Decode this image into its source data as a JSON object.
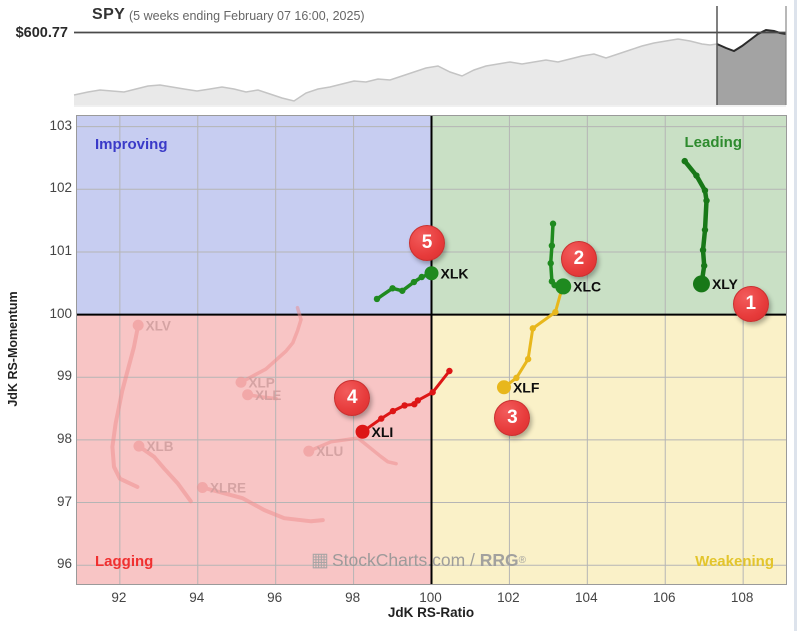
{
  "header": {
    "symbol": "SPY",
    "subtitle": "(5 weeks ending February 07 16:00, 2025)",
    "price_label": "$600.77"
  },
  "watermark": {
    "icon": "stockcharts-logo",
    "main": "StockCharts.com",
    "sep": " / ",
    "brand": "RRG",
    "reg": "®"
  },
  "chart_data": [
    {
      "type": "area",
      "title": "SPY",
      "subtitle": "(5 weeks ending February 07 16:00, 2025)",
      "price_line_label": "$600.77",
      "price_line_value": 600.77,
      "note": "SPY price sparkline; last 5 weeks highlighted in dark gray",
      "colors": {
        "area": "#e9e9e9",
        "line": "#c4c4c4",
        "hl_area": "#a3a3a3",
        "hl_line": "#2b2b2b",
        "ref_line": "#4a4a4a"
      },
      "points": [
        [
          74,
          95
        ],
        [
          88,
          92
        ],
        [
          100,
          90
        ],
        [
          112,
          91
        ],
        [
          124,
          92
        ],
        [
          136,
          89
        ],
        [
          148,
          86
        ],
        [
          160,
          85
        ],
        [
          172,
          87
        ],
        [
          184,
          89
        ],
        [
          197,
          91
        ],
        [
          210,
          89
        ],
        [
          222,
          87
        ],
        [
          234,
          89
        ],
        [
          246,
          92
        ],
        [
          258,
          90
        ],
        [
          270,
          94
        ],
        [
          282,
          98
        ],
        [
          294,
          101
        ],
        [
          306,
          93
        ],
        [
          318,
          89
        ],
        [
          330,
          87
        ],
        [
          342,
          84
        ],
        [
          354,
          81
        ],
        [
          366,
          82
        ],
        [
          378,
          79
        ],
        [
          390,
          80
        ],
        [
          402,
          76
        ],
        [
          414,
          72
        ],
        [
          426,
          68
        ],
        [
          438,
          66
        ],
        [
          450,
          72
        ],
        [
          462,
          76
        ],
        [
          474,
          70
        ],
        [
          486,
          66
        ],
        [
          498,
          64
        ],
        [
          510,
          62
        ],
        [
          522,
          64
        ],
        [
          534,
          62
        ],
        [
          546,
          60
        ],
        [
          558,
          62
        ],
        [
          570,
          59
        ],
        [
          582,
          56
        ],
        [
          594,
          54
        ],
        [
          606,
          58
        ],
        [
          618,
          54
        ],
        [
          630,
          50
        ],
        [
          642,
          46
        ],
        [
          654,
          43
        ],
        [
          666,
          41
        ],
        [
          678,
          39
        ],
        [
          690,
          41
        ],
        [
          702,
          44
        ],
        [
          710,
          45
        ],
        [
          717,
          44
        ],
        [
          726,
          48
        ],
        [
          734,
          51
        ],
        [
          742,
          46
        ],
        [
          750,
          40
        ],
        [
          758,
          34
        ],
        [
          766,
          30
        ],
        [
          774,
          31
        ],
        [
          780,
          33
        ],
        [
          786,
          34
        ]
      ]
    },
    {
      "type": "scatter",
      "subtype": "relative-rotation-graph",
      "xlabel": "JdK RS-Ratio",
      "ylabel": "JdK RS-Momentum",
      "xlim": [
        90.9,
        109.1
      ],
      "ylim": [
        95.7,
        103.17
      ],
      "x_ticks": [
        92,
        94,
        96,
        98,
        100,
        102,
        104,
        106,
        108
      ],
      "y_ticks": [
        96,
        97,
        98,
        99,
        100,
        101,
        102,
        103
      ],
      "grid": true,
      "center": {
        "x": 100,
        "y": 100
      },
      "quadrants": [
        {
          "id": "improving",
          "label": "Improving",
          "bg": "#c7cdf1",
          "text": "#3a3ac8"
        },
        {
          "id": "leading",
          "label": "Leading",
          "bg": "#c9e0c5",
          "text": "#2e8b2e"
        },
        {
          "id": "lagging",
          "label": "Lagging",
          "bg": "#f8c5c5",
          "text": "#f03030"
        },
        {
          "id": "weakening",
          "label": "Weakening",
          "bg": "#faf1c8",
          "text": "#e3c52c"
        }
      ],
      "series": [
        {
          "name": "XLV",
          "state": "faded",
          "color": "#ee8c8c",
          "width": 4,
          "head_r": 5.5,
          "points": [
            [
              92.45,
              97.25
            ],
            [
              92.0,
              97.38
            ],
            [
              91.85,
              97.57
            ],
            [
              91.81,
              97.89
            ],
            [
              91.89,
              98.26
            ],
            [
              92.06,
              98.78
            ],
            [
              92.36,
              99.48
            ],
            [
              92.47,
              99.83
            ]
          ]
        },
        {
          "name": "XLP",
          "state": "faded",
          "color": "#ee8c8c",
          "width": 3.5,
          "head_r": 5.5,
          "points": [
            [
              96.56,
              100.11
            ],
            [
              96.65,
              99.92
            ],
            [
              96.56,
              99.74
            ],
            [
              96.44,
              99.55
            ],
            [
              96.27,
              99.42
            ],
            [
              95.75,
              99.13
            ],
            [
              95.11,
              98.92
            ]
          ]
        },
        {
          "name": "XLE",
          "state": "faded",
          "color": "#ee8c8c",
          "width": 3.5,
          "head_r": 5.5,
          "points": [
            [
              96.01,
              98.66
            ],
            [
              95.71,
              98.68
            ],
            [
              95.28,
              98.72
            ]
          ]
        },
        {
          "name": "XLB",
          "state": "faded",
          "color": "#ee8c8c",
          "width": 4,
          "head_r": 5.5,
          "points": [
            [
              93.82,
              97.02
            ],
            [
              93.48,
              97.31
            ],
            [
              93.14,
              97.54
            ],
            [
              92.88,
              97.73
            ],
            [
              92.49,
              97.9
            ]
          ]
        },
        {
          "name": "XLU",
          "state": "faded",
          "color": "#ee8c8c",
          "width": 3.5,
          "head_r": 5.5,
          "points": [
            [
              99.09,
              97.62
            ],
            [
              98.88,
              97.65
            ],
            [
              98.71,
              97.73
            ],
            [
              98.11,
              98.03
            ],
            [
              97.42,
              97.97
            ],
            [
              96.85,
              97.82
            ]
          ]
        },
        {
          "name": "XLRE",
          "state": "faded",
          "color": "#ee8c8c",
          "width": 4,
          "head_r": 5.5,
          "points": [
            [
              97.21,
              96.72
            ],
            [
              96.91,
              96.7
            ],
            [
              96.22,
              96.75
            ],
            [
              95.71,
              96.88
            ],
            [
              95.15,
              97.07
            ],
            [
              94.12,
              97.24
            ]
          ]
        },
        {
          "name": "XLI",
          "state": "bright",
          "color": "#dd1616",
          "width": 3,
          "head_r": 7,
          "points": [
            [
              100.46,
              99.1
            ],
            [
              100.03,
              98.76
            ],
            [
              99.65,
              98.63
            ],
            [
              99.56,
              98.57
            ],
            [
              99.31,
              98.55
            ],
            [
              99.01,
              98.46
            ],
            [
              98.71,
              98.34
            ],
            [
              98.23,
              98.13
            ]
          ]
        },
        {
          "name": "XLF",
          "state": "bright",
          "color": "#e8b71c",
          "width": 3,
          "head_r": 7,
          "points": [
            [
              103.35,
              100.42
            ],
            [
              103.18,
              100.04
            ],
            [
              102.6,
              99.78
            ],
            [
              102.48,
              99.29
            ],
            [
              102.18,
              98.99
            ],
            [
              101.86,
              98.84
            ]
          ]
        },
        {
          "name": "XLC",
          "state": "bright",
          "color": "#1f8a1f",
          "width": 3.5,
          "head_r": 8,
          "points": [
            [
              103.12,
              101.45
            ],
            [
              103.09,
              101.1
            ],
            [
              103.06,
              100.82
            ],
            [
              103.09,
              100.53
            ],
            [
              103.16,
              100.47
            ],
            [
              103.38,
              100.45
            ]
          ]
        },
        {
          "name": "XLK",
          "state": "bright",
          "color": "#1f8a1f",
          "width": 3.5,
          "head_r": 7,
          "points": [
            [
              98.6,
              100.25
            ],
            [
              99.0,
              100.42
            ],
            [
              99.25,
              100.38
            ],
            [
              99.55,
              100.52
            ],
            [
              99.75,
              100.6
            ],
            [
              100.0,
              100.66
            ]
          ]
        },
        {
          "name": "XLY",
          "state": "bright",
          "color": "#187818",
          "width": 4.5,
          "head_r": 8.5,
          "points": [
            [
              106.5,
              102.45
            ],
            [
              106.8,
              102.22
            ],
            [
              107.02,
              101.98
            ],
            [
              107.06,
              101.82
            ],
            [
              107.02,
              101.35
            ],
            [
              106.97,
              101.03
            ],
            [
              107.0,
              100.78
            ],
            [
              106.93,
              100.49
            ]
          ]
        }
      ],
      "badges": [
        {
          "label": "1",
          "x": 108.17,
          "y": 100.19
        },
        {
          "label": "2",
          "x": 103.76,
          "y": 100.9
        },
        {
          "label": "3",
          "x": 102.05,
          "y": 98.36
        },
        {
          "label": "4",
          "x": 97.94,
          "y": 98.68
        },
        {
          "label": "5",
          "x": 99.86,
          "y": 101.16
        }
      ]
    }
  ]
}
